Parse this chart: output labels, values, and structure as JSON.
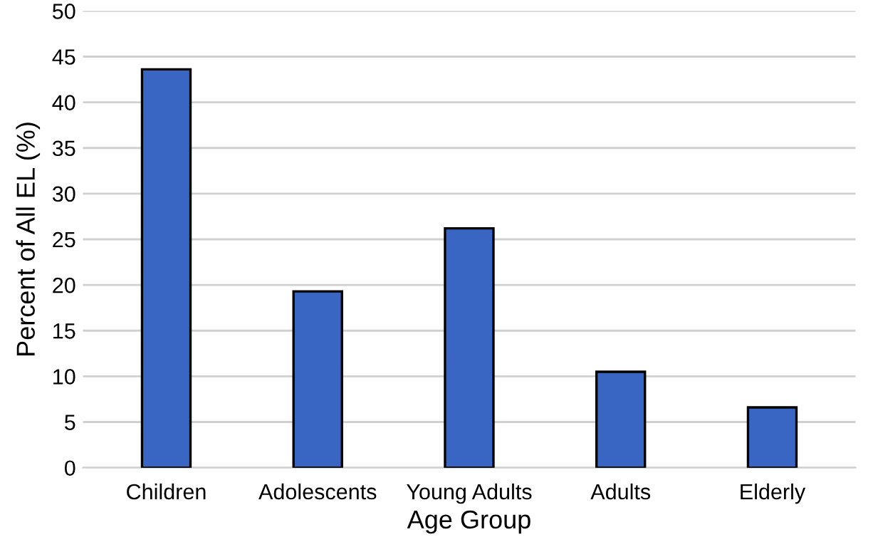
{
  "chart_data": {
    "type": "bar",
    "xlabel": "Age Group",
    "ylabel": "Percent of All EL (%)",
    "categories": [
      "Children",
      "Adolescents",
      "Young Adults",
      "Adults",
      "Elderly"
    ],
    "values": [
      43.6,
      19.3,
      26.2,
      10.5,
      6.6
    ],
    "color": "#3866c2",
    "ylim": [
      0,
      50
    ],
    "yticks": [
      0,
      5,
      10,
      15,
      20,
      25,
      30,
      35,
      40,
      45,
      50
    ],
    "grid": "y"
  }
}
